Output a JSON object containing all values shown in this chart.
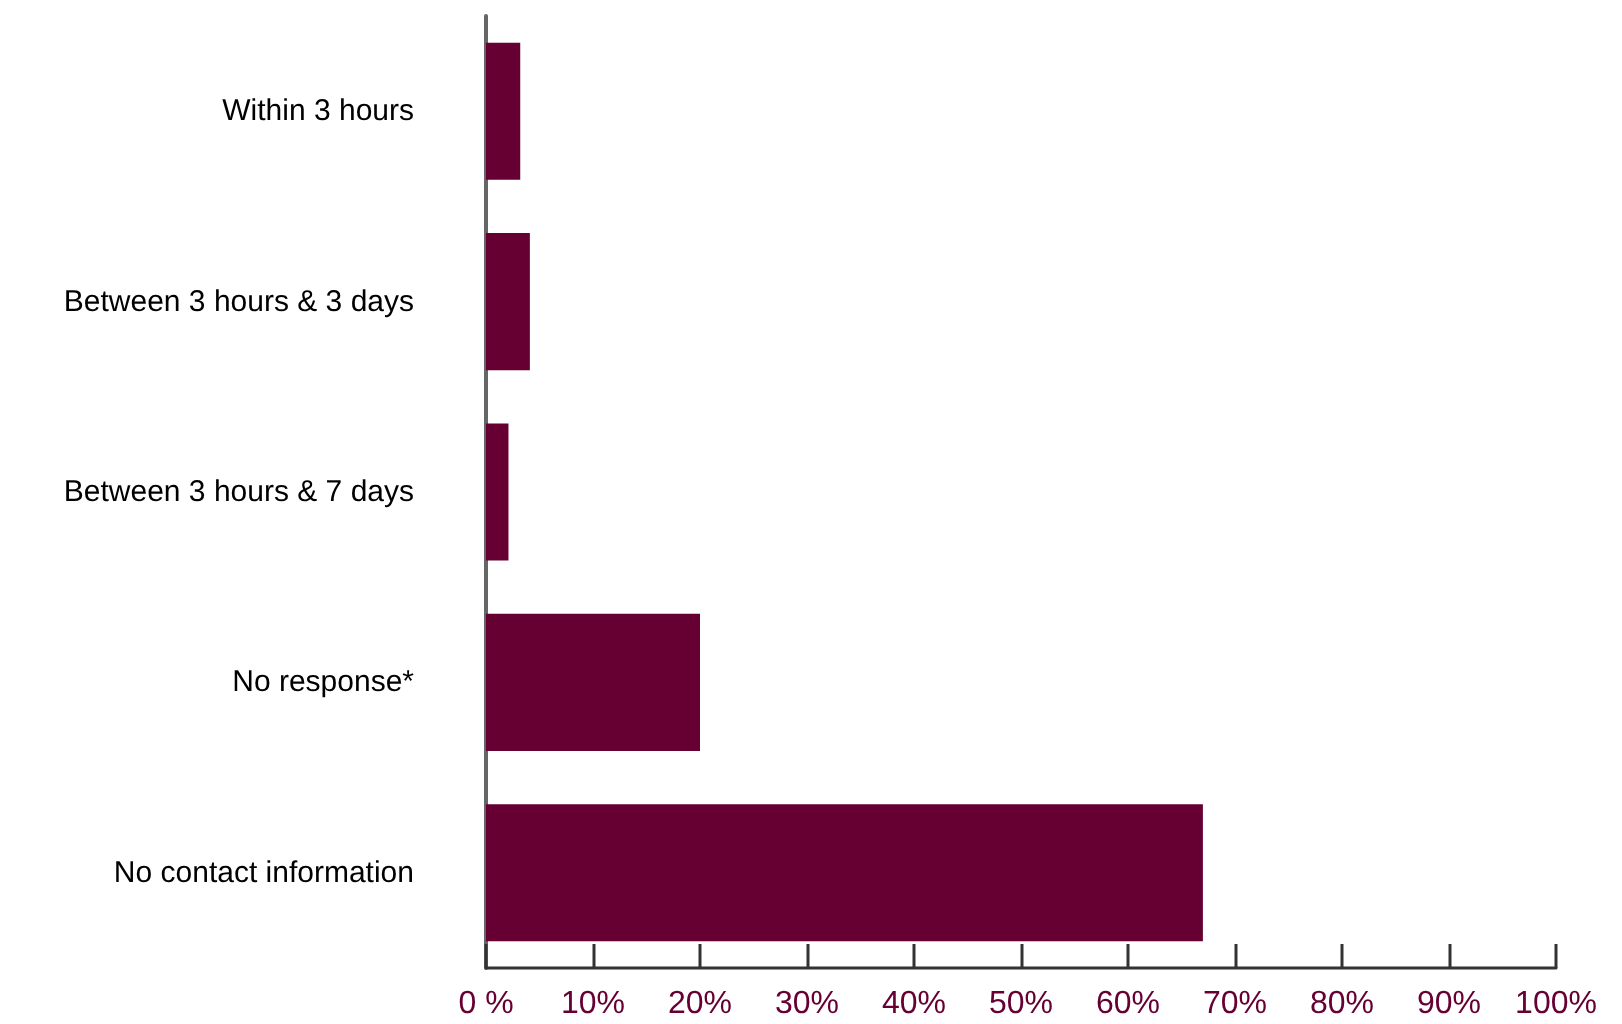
{
  "chart_data": {
    "type": "bar",
    "orientation": "horizontal",
    "categories": [
      "Within 3 hours",
      "Between 3 hours & 3 days",
      "Between 3 hours & 7 days",
      "No response*",
      "No contact information"
    ],
    "values": [
      3.2,
      4.1,
      2.1,
      20,
      67
    ],
    "color": "#660033",
    "xlim": [
      0,
      100
    ],
    "xticks": [
      {
        "value": 0,
        "label": "0 %"
      },
      {
        "value": 10,
        "label": "10%"
      },
      {
        "value": 20,
        "label": "20%"
      },
      {
        "value": 30,
        "label": "30%"
      },
      {
        "value": 40,
        "label": "40%"
      },
      {
        "value": 50,
        "label": "50%"
      },
      {
        "value": 60,
        "label": "60%"
      },
      {
        "value": 70,
        "label": "70%"
      },
      {
        "value": 80,
        "label": "80%"
      },
      {
        "value": 90,
        "label": "90%"
      },
      {
        "value": 100,
        "label": "100%"
      }
    ],
    "grid": false
  }
}
